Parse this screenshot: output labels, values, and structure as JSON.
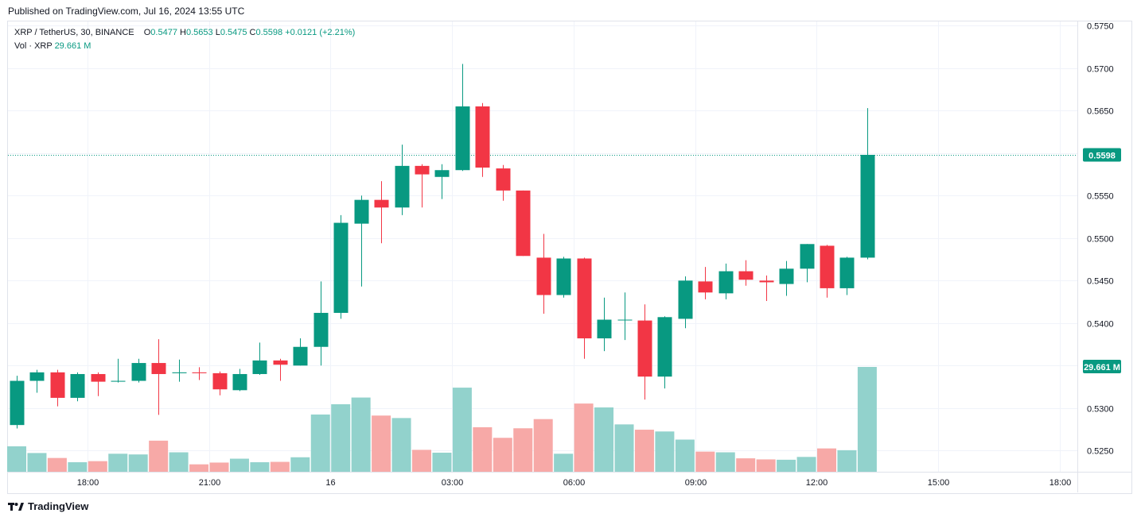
{
  "header": {
    "published": "Published on TradingView.com, Jul 16, 2024 13:55 UTC"
  },
  "legend": {
    "symbol": "XRP / TetherUS, 30, BINANCE",
    "o_label": "O",
    "o_value": "0.5477",
    "h_label": "H",
    "h_value": "0.5653",
    "l_label": "L",
    "l_value": "0.5475",
    "c_label": "C",
    "c_value": "0.5598",
    "change": "+0.0121 (+2.21%)",
    "vol_label": "Vol · XRP",
    "vol_value": "29.661 M"
  },
  "footer": {
    "brand": "TradingView"
  },
  "colors": {
    "up": "#089981",
    "down": "#f23645",
    "vol_up": "#92d2cc",
    "vol_down": "#f7a9a7",
    "grid": "#f0f3fa"
  },
  "chart_data": {
    "type": "candlestick",
    "interval": "30",
    "ylim": [
      0.5225,
      0.5755
    ],
    "y_ticks": [
      "0.5250",
      "0.5300",
      "0.5350",
      "0.5400",
      "0.5450",
      "0.5500",
      "0.5550",
      "0.5600",
      "0.5650",
      "0.5700",
      "0.5750"
    ],
    "x_ticks": [
      {
        "label": "18:00",
        "index": 3.5
      },
      {
        "label": "21:00",
        "index": 9.5
      },
      {
        "label": "16",
        "index": 15.5
      },
      {
        "label": "03:00",
        "index": 21.5
      },
      {
        "label": "06:00",
        "index": 27.5
      },
      {
        "label": "09:00",
        "index": 33.5
      },
      {
        "label": "12:00",
        "index": 39.5
      },
      {
        "label": "15:00",
        "index": 45.5
      },
      {
        "label": "18:00",
        "index": 51.5
      }
    ],
    "total_slots": 53,
    "last_price": "0.5598",
    "last_volume_label": "29.661 M",
    "candles": [
      {
        "o": 0.528,
        "h": 0.5338,
        "l": 0.5276,
        "c": 0.5332,
        "v": 7.2
      },
      {
        "o": 0.5332,
        "h": 0.5345,
        "l": 0.5318,
        "c": 0.5342,
        "v": 5.3
      },
      {
        "o": 0.5342,
        "h": 0.5345,
        "l": 0.5302,
        "c": 0.5312,
        "v": 3.9
      },
      {
        "o": 0.5312,
        "h": 0.5342,
        "l": 0.5308,
        "c": 0.534,
        "v": 2.7
      },
      {
        "o": 0.534,
        "h": 0.5342,
        "l": 0.5314,
        "c": 0.5331,
        "v": 3.0
      },
      {
        "o": 0.5331,
        "h": 0.5358,
        "l": 0.533,
        "c": 0.5332,
        "v": 5.1
      },
      {
        "o": 0.5332,
        "h": 0.5358,
        "l": 0.533,
        "c": 0.5353,
        "v": 4.9
      },
      {
        "o": 0.5353,
        "h": 0.5381,
        "l": 0.5292,
        "c": 0.534,
        "v": 8.8
      },
      {
        "o": 0.5341,
        "h": 0.5357,
        "l": 0.5331,
        "c": 0.5342,
        "v": 5.5
      },
      {
        "o": 0.5342,
        "h": 0.5348,
        "l": 0.5333,
        "c": 0.5341,
        "v": 2.1
      },
      {
        "o": 0.5341,
        "h": 0.5343,
        "l": 0.5315,
        "c": 0.5322,
        "v": 2.6
      },
      {
        "o": 0.5321,
        "h": 0.5346,
        "l": 0.532,
        "c": 0.534,
        "v": 3.7
      },
      {
        "o": 0.534,
        "h": 0.5377,
        "l": 0.5339,
        "c": 0.5356,
        "v": 2.7
      },
      {
        "o": 0.5356,
        "h": 0.5358,
        "l": 0.5332,
        "c": 0.5351,
        "v": 2.8
      },
      {
        "o": 0.535,
        "h": 0.5382,
        "l": 0.535,
        "c": 0.5372,
        "v": 4.1
      },
      {
        "o": 0.5372,
        "h": 0.5449,
        "l": 0.535,
        "c": 0.5412,
        "v": 16.2
      },
      {
        "o": 0.5412,
        "h": 0.5527,
        "l": 0.5405,
        "c": 0.5518,
        "v": 19.1
      },
      {
        "o": 0.5517,
        "h": 0.555,
        "l": 0.5443,
        "c": 0.5545,
        "v": 21.0
      },
      {
        "o": 0.5545,
        "h": 0.5567,
        "l": 0.5494,
        "c": 0.5536,
        "v": 15.9
      },
      {
        "o": 0.5536,
        "h": 0.561,
        "l": 0.5527,
        "c": 0.5585,
        "v": 15.2
      },
      {
        "o": 0.5585,
        "h": 0.5587,
        "l": 0.5536,
        "c": 0.5575,
        "v": 6.2
      },
      {
        "o": 0.5572,
        "h": 0.5587,
        "l": 0.5546,
        "c": 0.558,
        "v": 5.4
      },
      {
        "o": 0.558,
        "h": 0.5705,
        "l": 0.5579,
        "c": 0.5655,
        "v": 23.8
      },
      {
        "o": 0.5655,
        "h": 0.5659,
        "l": 0.5572,
        "c": 0.5583,
        "v": 12.6
      },
      {
        "o": 0.5582,
        "h": 0.5586,
        "l": 0.5544,
        "c": 0.5556,
        "v": 9.6
      },
      {
        "o": 0.5556,
        "h": 0.5556,
        "l": 0.5479,
        "c": 0.5479,
        "v": 12.3
      },
      {
        "o": 0.5477,
        "h": 0.5505,
        "l": 0.5411,
        "c": 0.5433,
        "v": 14.9
      },
      {
        "o": 0.5433,
        "h": 0.5478,
        "l": 0.543,
        "c": 0.5476,
        "v": 5.1
      },
      {
        "o": 0.5476,
        "h": 0.5477,
        "l": 0.5358,
        "c": 0.5382,
        "v": 19.3
      },
      {
        "o": 0.5382,
        "h": 0.543,
        "l": 0.5367,
        "c": 0.5404,
        "v": 18.2
      },
      {
        "o": 0.5404,
        "h": 0.5436,
        "l": 0.538,
        "c": 0.5404,
        "v": 13.4
      },
      {
        "o": 0.5403,
        "h": 0.5422,
        "l": 0.531,
        "c": 0.5337,
        "v": 11.9
      },
      {
        "o": 0.5337,
        "h": 0.5408,
        "l": 0.5323,
        "c": 0.5407,
        "v": 11.4
      },
      {
        "o": 0.5405,
        "h": 0.5455,
        "l": 0.5394,
        "c": 0.545,
        "v": 9.1
      },
      {
        "o": 0.5449,
        "h": 0.5466,
        "l": 0.5428,
        "c": 0.5436,
        "v": 5.7
      },
      {
        "o": 0.5435,
        "h": 0.547,
        "l": 0.5428,
        "c": 0.5461,
        "v": 5.5
      },
      {
        "o": 0.5461,
        "h": 0.5474,
        "l": 0.5444,
        "c": 0.5451,
        "v": 3.8
      },
      {
        "o": 0.545,
        "h": 0.5456,
        "l": 0.5426,
        "c": 0.5448,
        "v": 3.5
      },
      {
        "o": 0.5446,
        "h": 0.5473,
        "l": 0.5432,
        "c": 0.5464,
        "v": 3.4
      },
      {
        "o": 0.5464,
        "h": 0.5493,
        "l": 0.5448,
        "c": 0.5493,
        "v": 4.2
      },
      {
        "o": 0.5491,
        "h": 0.5492,
        "l": 0.543,
        "c": 0.5441,
        "v": 6.6
      },
      {
        "o": 0.5441,
        "h": 0.5478,
        "l": 0.5433,
        "c": 0.5477,
        "v": 6.1
      },
      {
        "o": 0.5477,
        "h": 0.5653,
        "l": 0.5475,
        "c": 0.5598,
        "v": 29.661
      }
    ]
  }
}
